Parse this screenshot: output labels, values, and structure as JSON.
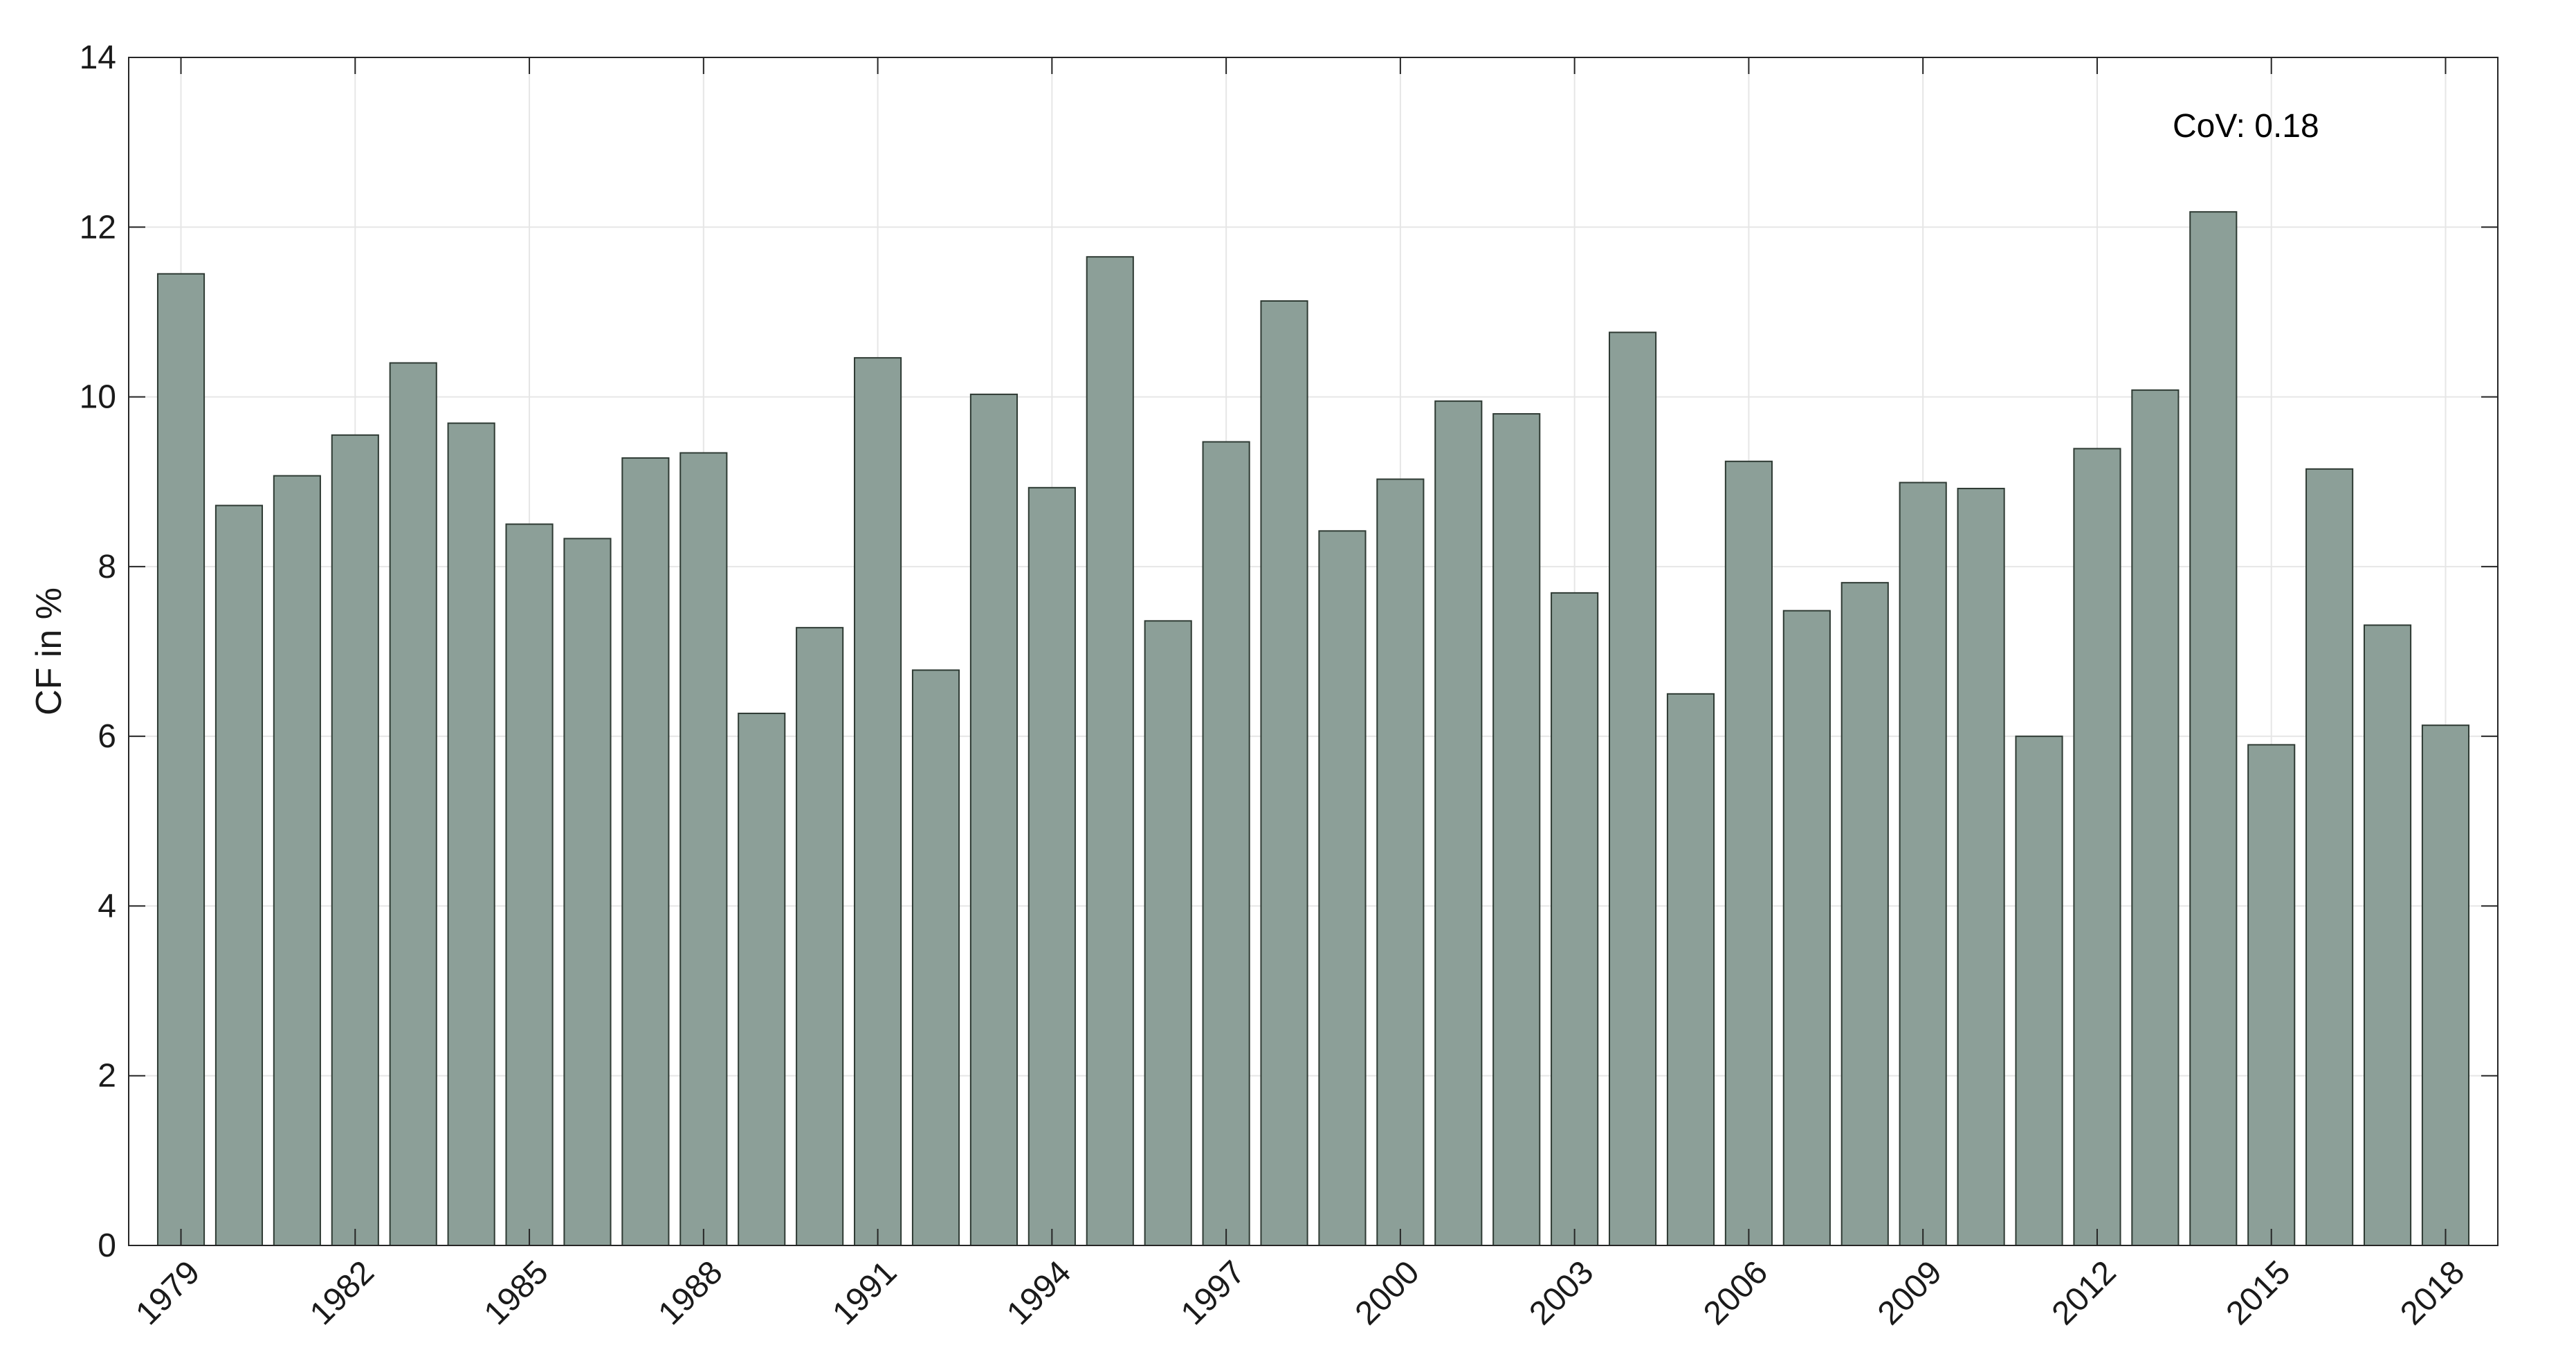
{
  "chart_data": {
    "type": "bar",
    "ylabel": "CF in %",
    "xlabel": "",
    "title": "",
    "ylim": [
      0,
      14
    ],
    "yticks": [
      0,
      2,
      4,
      6,
      8,
      10,
      12,
      14
    ],
    "categories": [
      1979,
      1980,
      1981,
      1982,
      1983,
      1984,
      1985,
      1986,
      1987,
      1988,
      1989,
      1990,
      1991,
      1992,
      1993,
      1994,
      1995,
      1996,
      1997,
      1998,
      1999,
      2000,
      2001,
      2002,
      2003,
      2004,
      2005,
      2006,
      2007,
      2008,
      2009,
      2010,
      2011,
      2012,
      2013,
      2014,
      2015,
      2016,
      2017,
      2018
    ],
    "xtick_labels": [
      "1979",
      "1982",
      "1985",
      "1988",
      "1991",
      "1994",
      "1997",
      "2000",
      "2003",
      "2006",
      "2009",
      "2012",
      "2015",
      "2018"
    ],
    "values": [
      11.45,
      8.72,
      9.07,
      9.55,
      10.4,
      9.69,
      8.5,
      8.33,
      9.28,
      9.34,
      6.27,
      7.28,
      10.46,
      6.78,
      10.03,
      8.93,
      11.65,
      7.36,
      9.47,
      11.13,
      8.42,
      9.03,
      9.95,
      9.8,
      7.69,
      10.76,
      6.5,
      9.24,
      7.48,
      7.81,
      8.99,
      8.92,
      6.0,
      9.39,
      10.08,
      12.18,
      5.9,
      9.15,
      7.31,
      6.13
    ],
    "bar_color": "#8c9f98",
    "bar_edge_color": "#2e3a33",
    "grid": true,
    "annotation": "CoV: 0.18"
  }
}
